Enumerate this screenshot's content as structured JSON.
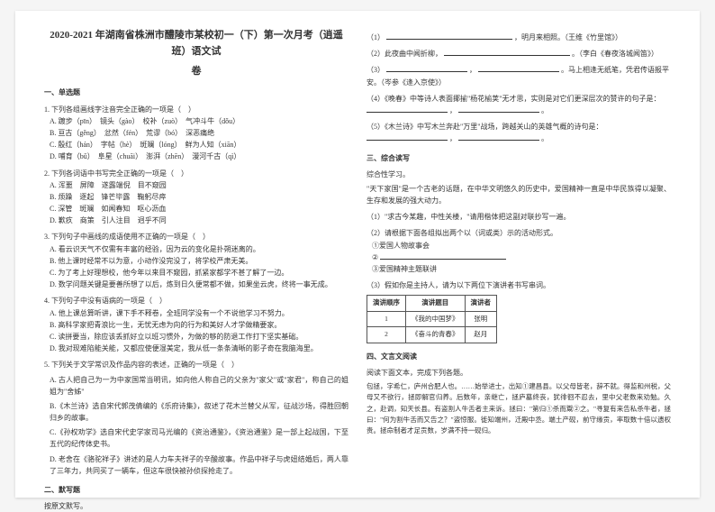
{
  "title_line1": "2020-2021 年湖南省株洲市醴陵市某校初一（下）第一次月考（逍遥班）语文试",
  "title_line2": "卷",
  "sec1": "一、单选题",
  "q1_stem": "1. 下列各组画线字注音完全正确的一项是（　）",
  "q1_A": "A. 踱步（pīn）　镜头（gào）　校补（zuò）　气冲斗牛（dǒu）",
  "q1_B": "B. 亘古（gěng）　忿然（fén）　荒谬（bó）　深恶痛绝",
  "q1_C": "C. 殷红（hán）　字帖（hè）　斑斓（lóng）　鲜为人知（xiān）",
  "q1_D": "D. 哺育（bǔ）　阜星（chuāi）　澎湃（zhēn）　漫河千古（qì）",
  "q2_stem": "2. 下列各词语中书写完全正确的一项是（　）",
  "q2_A": "A. 浑噩　屏障　遂露端倪　目不窥园",
  "q2_B": "B. 烦躁　逐起　锋芒毕露　鞠躬尽瘁",
  "q2_C": "C. 深管　斑斓　如闻春知　呕心沥血",
  "q2_D": "D. 歉疚　商策　引人注目　迥乎不同",
  "q3_stem": "3. 下列句子中画线的成语使用不正确的一项是（　）",
  "q3_A": "A. 看云识天气不仅需有丰富的经验，因为云的变化是扑朔迷离的。",
  "q3_B": "B. 他上课时经常不以为意，小动作没完没了，将学校严肃无美。",
  "q3_C": "C. 为了考上好理想校，他今年以来目不窥园，抓紧家都学不甚了解了一边。",
  "q3_D": "D. 数学问题关键是要善所想了以后，炼到日久便常都不做，如果坐云虎，终将一事无成。",
  "q4_stem": "4. 下列句子中没有语病的一项是（　）",
  "q4_A": "A. 他上课总算听讲，课下手不释卷，全班同学没有一个不说他学习不努力。",
  "q4_B": "B. 高科学家把青浪比一生，无忧无虑为向的行为和美好人才学做精要家。",
  "q4_C": "C. 读拼要当，除应该丢抓好立以班习惯外，为做的够的防退工作打下坚实基础。",
  "q4_D": "D. 我对现难陷能关能，又都应使便湿美定，我从低一条条清晰的影子奇在我脑海里。",
  "q5_stem": "5. 下列关于文学常识及作品内容的表述，正确的一项是（　）",
  "q5_A": "A. 古人把自己为一为中家国常当明讯，如向他人称自己的父亲为\"家父\"或\"家君\"，称自己的姐姐为\"舍姊\"",
  "q5_B": "B.《木兰诗》选自宋代郭茂倩编的《乐府诗集》，叙述了花木兰替父从军，征战沙场，得胜回朝归乡的故事。",
  "q5_C": "C.《孙权劝学》选自宋代史学家司马光编的《资治通鉴》，《资治通鉴》是一部上起战国，下至五代的纪传体史书。",
  "q5_D": "D. 老舍在《骆驼祥子》讲述的是人力车夫祥子的辛酸故事。作品中祥子与虎妞结婚后，两人靠了三年力，共同买了一辆车，但这车很快被孙侦探抢走了。",
  "sec2": "二、默写题",
  "rp": "按原文默写。",
  "r_fill1_a": "（1）",
  "r_fill1_b": "，明月来相照。（王维《竹里馆》）",
  "r_fill2_a": "（2）此夜曲中闻折柳，",
  "r_fill2_b": "。（李白《春夜洛城闻笛》）",
  "r_fill3_a": "（3）",
  "r_fill3_b": "，",
  "r_fill3_c": "。马上相逢无纸笔，凭君传语报平安。（岑参《逢入京使》）",
  "r_fill4_a": "（4）《晚春》中等诗人表面揶揄\"杨花榆荚\"无才思，实则是对它们更深层次的赞许的句子是：",
  "r_fill4_b": "，",
  "r_fill4_c": "。",
  "r_fill5_a": "（5）《木兰诗》中写木兰奔赴\"万里\"战场，跨越关山的英雄气概的诗句是：",
  "r_fill5_b": "，",
  "r_fill5_c": "。",
  "sec3": "三、综合读写",
  "zh1": "综合性学习。",
  "zh2": "\"天下家国\"是一个古老的话题，在中华文明悠久的历史中，爱国精神一直是中华民族得以凝聚、生存和发展的强大动力。",
  "zh_q1": "（1）\"求古今某趣，中性关楼，\"请用楷体把这副对联抄写一遍。",
  "zh_q2": "（2）请根据下面各组拟出两个以（词或类）示的活动形式。",
  "zh_q2a": "①爱国人物故事会",
  "zh_q2b": "②",
  "zh_q2c": "③爱国精神主题联讲",
  "zh_q3": "（3）假如你是主持人，请为以下两位下演讲者书写串词。",
  "table_h1": "演讲顺序",
  "table_h2": "演讲题目",
  "table_h3": "演讲者",
  "table_r1c1": "1",
  "table_r1c2": "《我的中国梦》",
  "table_r1c3": "张明",
  "table_r2c1": "2",
  "table_r2c2": "《奋斗的青春》",
  "table_r2c3": "赵月",
  "sec4": "四、文言文阅读",
  "wy1": "阅读下面文本，完成下列各题。",
  "wy2": "包拯，字希仁，庐州合肥人也。……始举进士，出知①建昌县。以父母皆老，辞不就。得监和州税，父母又不欲行，拯即解官归养。后数年，亲继亡，拯庐墓终丧，犹徘徊不忍去，里中父老数来劝勉。久之，赴调，知天长县。有盗割人牛舌者主来诉。拯曰：\"第归①杀而鬻②之。\"寻复有来告私杀牛者，拯曰：\"何为割牛舌而又告之？\"盗惊服。徙知端州，迁殿中丞。端土产砚，前守缘贡，率取数十倍以遗权贵。拯命制者才足贡数，岁满不持一砚归。"
}
